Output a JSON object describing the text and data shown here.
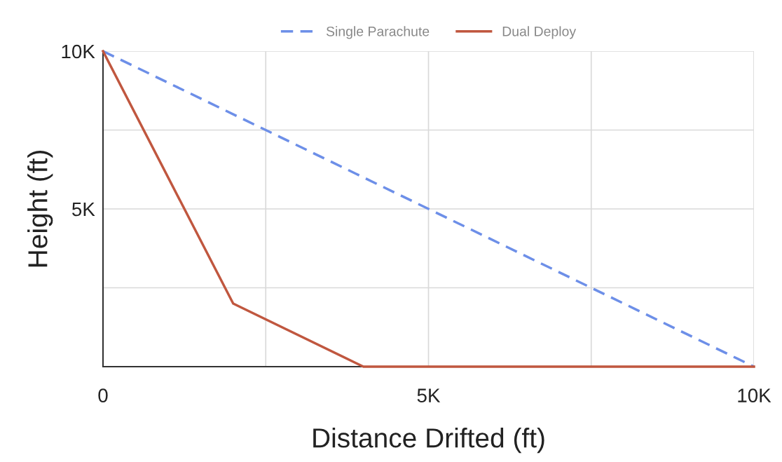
{
  "chart_data": {
    "type": "line",
    "xlabel": "Distance Drifted (ft)",
    "ylabel": "Height (ft)",
    "series": [
      {
        "name": "Single Parachute",
        "color": "#6d8fe8",
        "line_style": "dashed",
        "x": [
          0,
          10000
        ],
        "values": [
          10000,
          0
        ]
      },
      {
        "name": "Dual Deploy",
        "color": "#c0573f",
        "line_style": "solid",
        "x": [
          0,
          2000,
          4000,
          10000
        ],
        "values": [
          10000,
          2000,
          0,
          0
        ]
      }
    ],
    "xlim": [
      0,
      10000
    ],
    "ylim": [
      0,
      10000
    ],
    "xticks": [
      {
        "value": 0,
        "label": "0"
      },
      {
        "value": 2500,
        "label": null
      },
      {
        "value": 5000,
        "label": "5K"
      },
      {
        "value": 7500,
        "label": null
      },
      {
        "value": 10000,
        "label": "10K"
      }
    ],
    "yticks": [
      {
        "value": 0,
        "label": null
      },
      {
        "value": 2500,
        "label": null
      },
      {
        "value": 5000,
        "label": "5K"
      },
      {
        "value": 7500,
        "label": null
      },
      {
        "value": 10000,
        "label": "10K"
      }
    ],
    "grid": true,
    "legend": "top",
    "marker": "none"
  }
}
